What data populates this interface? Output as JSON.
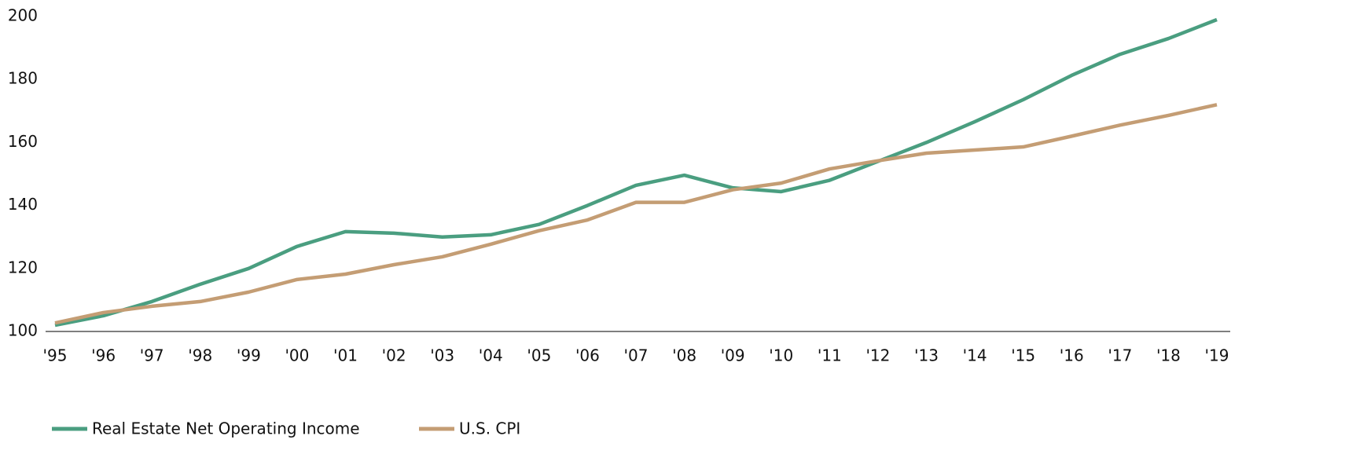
{
  "chart_data": {
    "type": "line",
    "categories": [
      "'95",
      "'96",
      "'97",
      "'98",
      "'99",
      "'00",
      "'01",
      "'02",
      "'03",
      "'04",
      "'05",
      "'06",
      "'07",
      "'08",
      "'09",
      "'10",
      "'11",
      "'12",
      "'13",
      "'14",
      "'15",
      "'16",
      "'17",
      "'18",
      "'19"
    ],
    "series": [
      {
        "name": "Real Estate Net Operating Income",
        "color": "#4a9e80",
        "values": [
          102,
          105,
          109.5,
          115,
          120,
          127,
          131.7,
          131.2,
          130,
          130.7,
          134,
          140,
          146.4,
          149.6,
          145.6,
          144.4,
          148,
          154,
          160,
          166.6,
          173.6,
          181.3,
          188,
          193,
          199
        ]
      },
      {
        "name": "U.S. CPI",
        "color": "#c49d74",
        "values": [
          102.7,
          106,
          108,
          109.5,
          112.5,
          116.5,
          118.2,
          121.2,
          123.7,
          127.7,
          132,
          135.4,
          141,
          141,
          145,
          147.1,
          151.6,
          154.2,
          156.6,
          157.6,
          158.6,
          162,
          165.5,
          168.6,
          172
        ]
      }
    ],
    "ylim": [
      100,
      200
    ],
    "yticks": [
      100,
      120,
      140,
      160,
      180,
      200
    ],
    "grid": false,
    "legend": "bottom-left"
  }
}
